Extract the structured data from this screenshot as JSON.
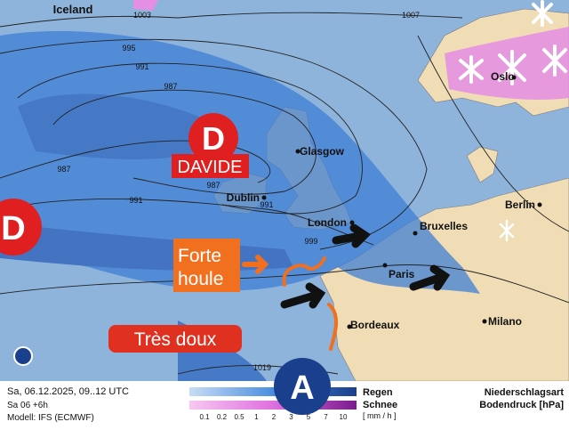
{
  "map": {
    "region_label": "Iceland",
    "isobar_labels": [
      1003,
      1007,
      995,
      991,
      987,
      987,
      987,
      991,
      991,
      999,
      1019
    ],
    "cities": [
      "Glasgow",
      "Dublin",
      "London",
      "Bruxelles",
      "Paris",
      "Bordeaux",
      "Milano",
      "Berlin",
      "Oslo"
    ],
    "pressure_centers": [
      {
        "symbol": "D",
        "name": "DAVIDE"
      },
      {
        "symbol": "D"
      },
      {
        "symbol": "A"
      }
    ],
    "annotations": {
      "swell": [
        "Forte",
        "houle"
      ],
      "mild": "Très doux"
    }
  },
  "footer": {
    "date": "Sa, 06.12.2025, 09..12 UTC",
    "step": "Sa 06 +6h",
    "model": "Modell: IFS (ECMWF)",
    "legend": {
      "rain": "Regen",
      "snow": "Schnee",
      "ticks": [
        0.1,
        0.2,
        0.5,
        1,
        2,
        3,
        5,
        7,
        10
      ],
      "unit": "[ mm / h ]"
    },
    "type_label": "Niederschlagsart",
    "pressure_label": "Bodendruck [hPa]"
  }
}
